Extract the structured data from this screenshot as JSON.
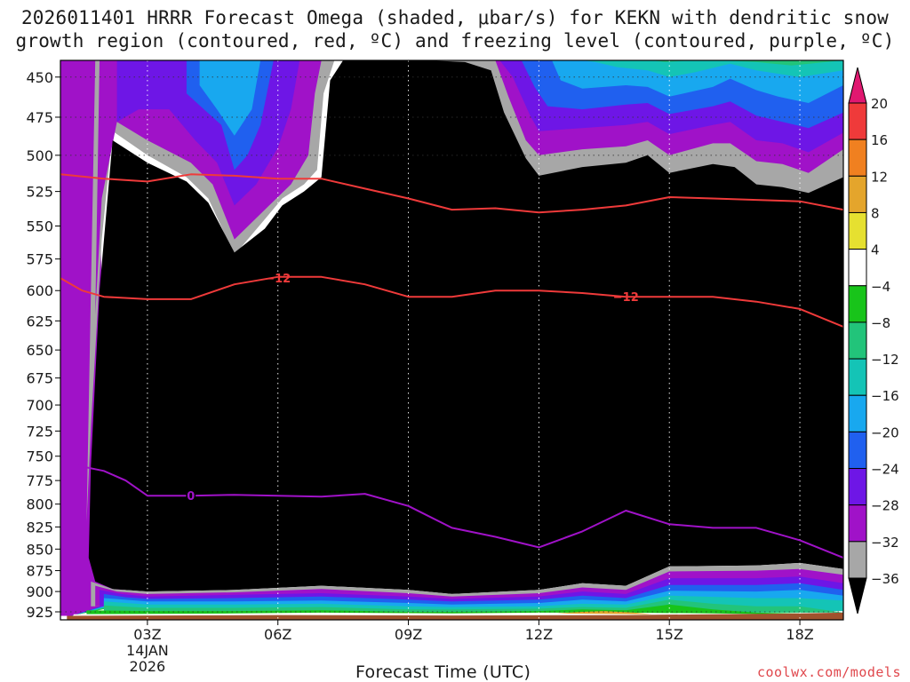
{
  "title": {
    "line1": "2026011401 HRRR Forecast Omega (shaded, μbar/s) for KEKN with dendritic snow",
    "line2": "growth region (contoured, red, ºC) and freezing level (contoured, purple, ºC)"
  },
  "xlabel": "Forecast Time (UTC)",
  "credit": "coolwx.com/models",
  "chart_data": {
    "type": "area",
    "title": "2026011401 HRRR Forecast Omega (shaded, μbar/s) for KEKN with dendritic snow growth region (contoured, red, ºC) and freezing level (contoured, purple, ºC)",
    "xlabel": "Forecast Time (UTC)",
    "ylabel": "",
    "x_ticks": [
      {
        "x": 3,
        "label": "03Z"
      },
      {
        "x": 6,
        "label": "06Z"
      },
      {
        "x": 9,
        "label": "09Z"
      },
      {
        "x": 12,
        "label": "12Z"
      },
      {
        "x": 15,
        "label": "15Z"
      },
      {
        "x": 18,
        "label": "18Z"
      }
    ],
    "x_date_lines": [
      "14JAN",
      "2026"
    ],
    "xlim": [
      1,
      19
    ],
    "y_ticks": [
      450,
      475,
      500,
      525,
      550,
      575,
      600,
      625,
      650,
      675,
      700,
      725,
      750,
      775,
      800,
      825,
      850,
      875,
      900,
      925
    ],
    "ylim": [
      935,
      440
    ],
    "y_log": true,
    "grid": true,
    "colorbar": {
      "levels": [
        20,
        16,
        12,
        8,
        4,
        -4,
        -8,
        -12,
        -16,
        -20,
        -24,
        -28,
        -32,
        -36
      ],
      "colors": [
        "#e01870",
        "#ef3a3a",
        "#f08020",
        "#e4a52c",
        "#e6e030",
        "#ffffff",
        "#18c41a",
        "#22c47a",
        "#14c4b6",
        "#18a8ef",
        "#2060ef",
        "#6e16e6",
        "#a012c8",
        "#a7a7a7",
        "#000000"
      ]
    },
    "contours": [
      {
        "name": "-12",
        "color": "#ef3a3a",
        "labels": [
          {
            "x": 6,
            "y": 590
          },
          {
            "x": 14,
            "y": 605
          }
        ],
        "points": [
          [
            1,
            513
          ],
          [
            2,
            516
          ],
          [
            3,
            518
          ],
          [
            4,
            513
          ],
          [
            5,
            514
          ],
          [
            6,
            516
          ],
          [
            7,
            516
          ],
          [
            8,
            523
          ],
          [
            9,
            530
          ],
          [
            10,
            538
          ],
          [
            11,
            537
          ],
          [
            12,
            540
          ],
          [
            13,
            538
          ],
          [
            14,
            535
          ],
          [
            15,
            529
          ],
          [
            16,
            530
          ],
          [
            17,
            531
          ],
          [
            18,
            532
          ],
          [
            19,
            538
          ]
        ]
      },
      {
        "name": "-12",
        "color": "#ef3a3a",
        "labels": [],
        "points": [
          [
            1,
            590
          ],
          [
            1.5,
            600
          ],
          [
            2,
            605
          ],
          [
            3,
            607
          ],
          [
            4,
            607
          ],
          [
            5,
            595
          ],
          [
            6,
            589
          ],
          [
            7,
            589
          ],
          [
            8,
            595
          ],
          [
            9,
            605
          ],
          [
            10,
            605
          ],
          [
            11,
            600
          ],
          [
            12,
            600
          ],
          [
            13,
            602
          ],
          [
            14,
            605
          ],
          [
            15,
            605
          ],
          [
            16,
            605
          ],
          [
            17,
            609
          ],
          [
            18,
            615
          ],
          [
            19,
            630
          ]
        ]
      },
      {
        "name": "0",
        "color": "#a012c8",
        "labels": [
          {
            "x": 4,
            "y": 791
          }
        ],
        "points": [
          [
            1,
            756
          ],
          [
            2,
            765
          ],
          [
            2.5,
            775
          ],
          [
            3,
            791
          ],
          [
            4,
            791
          ],
          [
            5,
            790
          ],
          [
            6,
            791
          ],
          [
            7,
            792
          ],
          [
            8,
            789
          ],
          [
            9,
            802
          ],
          [
            10,
            826
          ],
          [
            11,
            836
          ],
          [
            12,
            848
          ],
          [
            13,
            830
          ],
          [
            14,
            807
          ],
          [
            15,
            822
          ],
          [
            16,
            826
          ],
          [
            17,
            826
          ],
          [
            18,
            840
          ],
          [
            19,
            860
          ]
        ]
      }
    ]
  }
}
